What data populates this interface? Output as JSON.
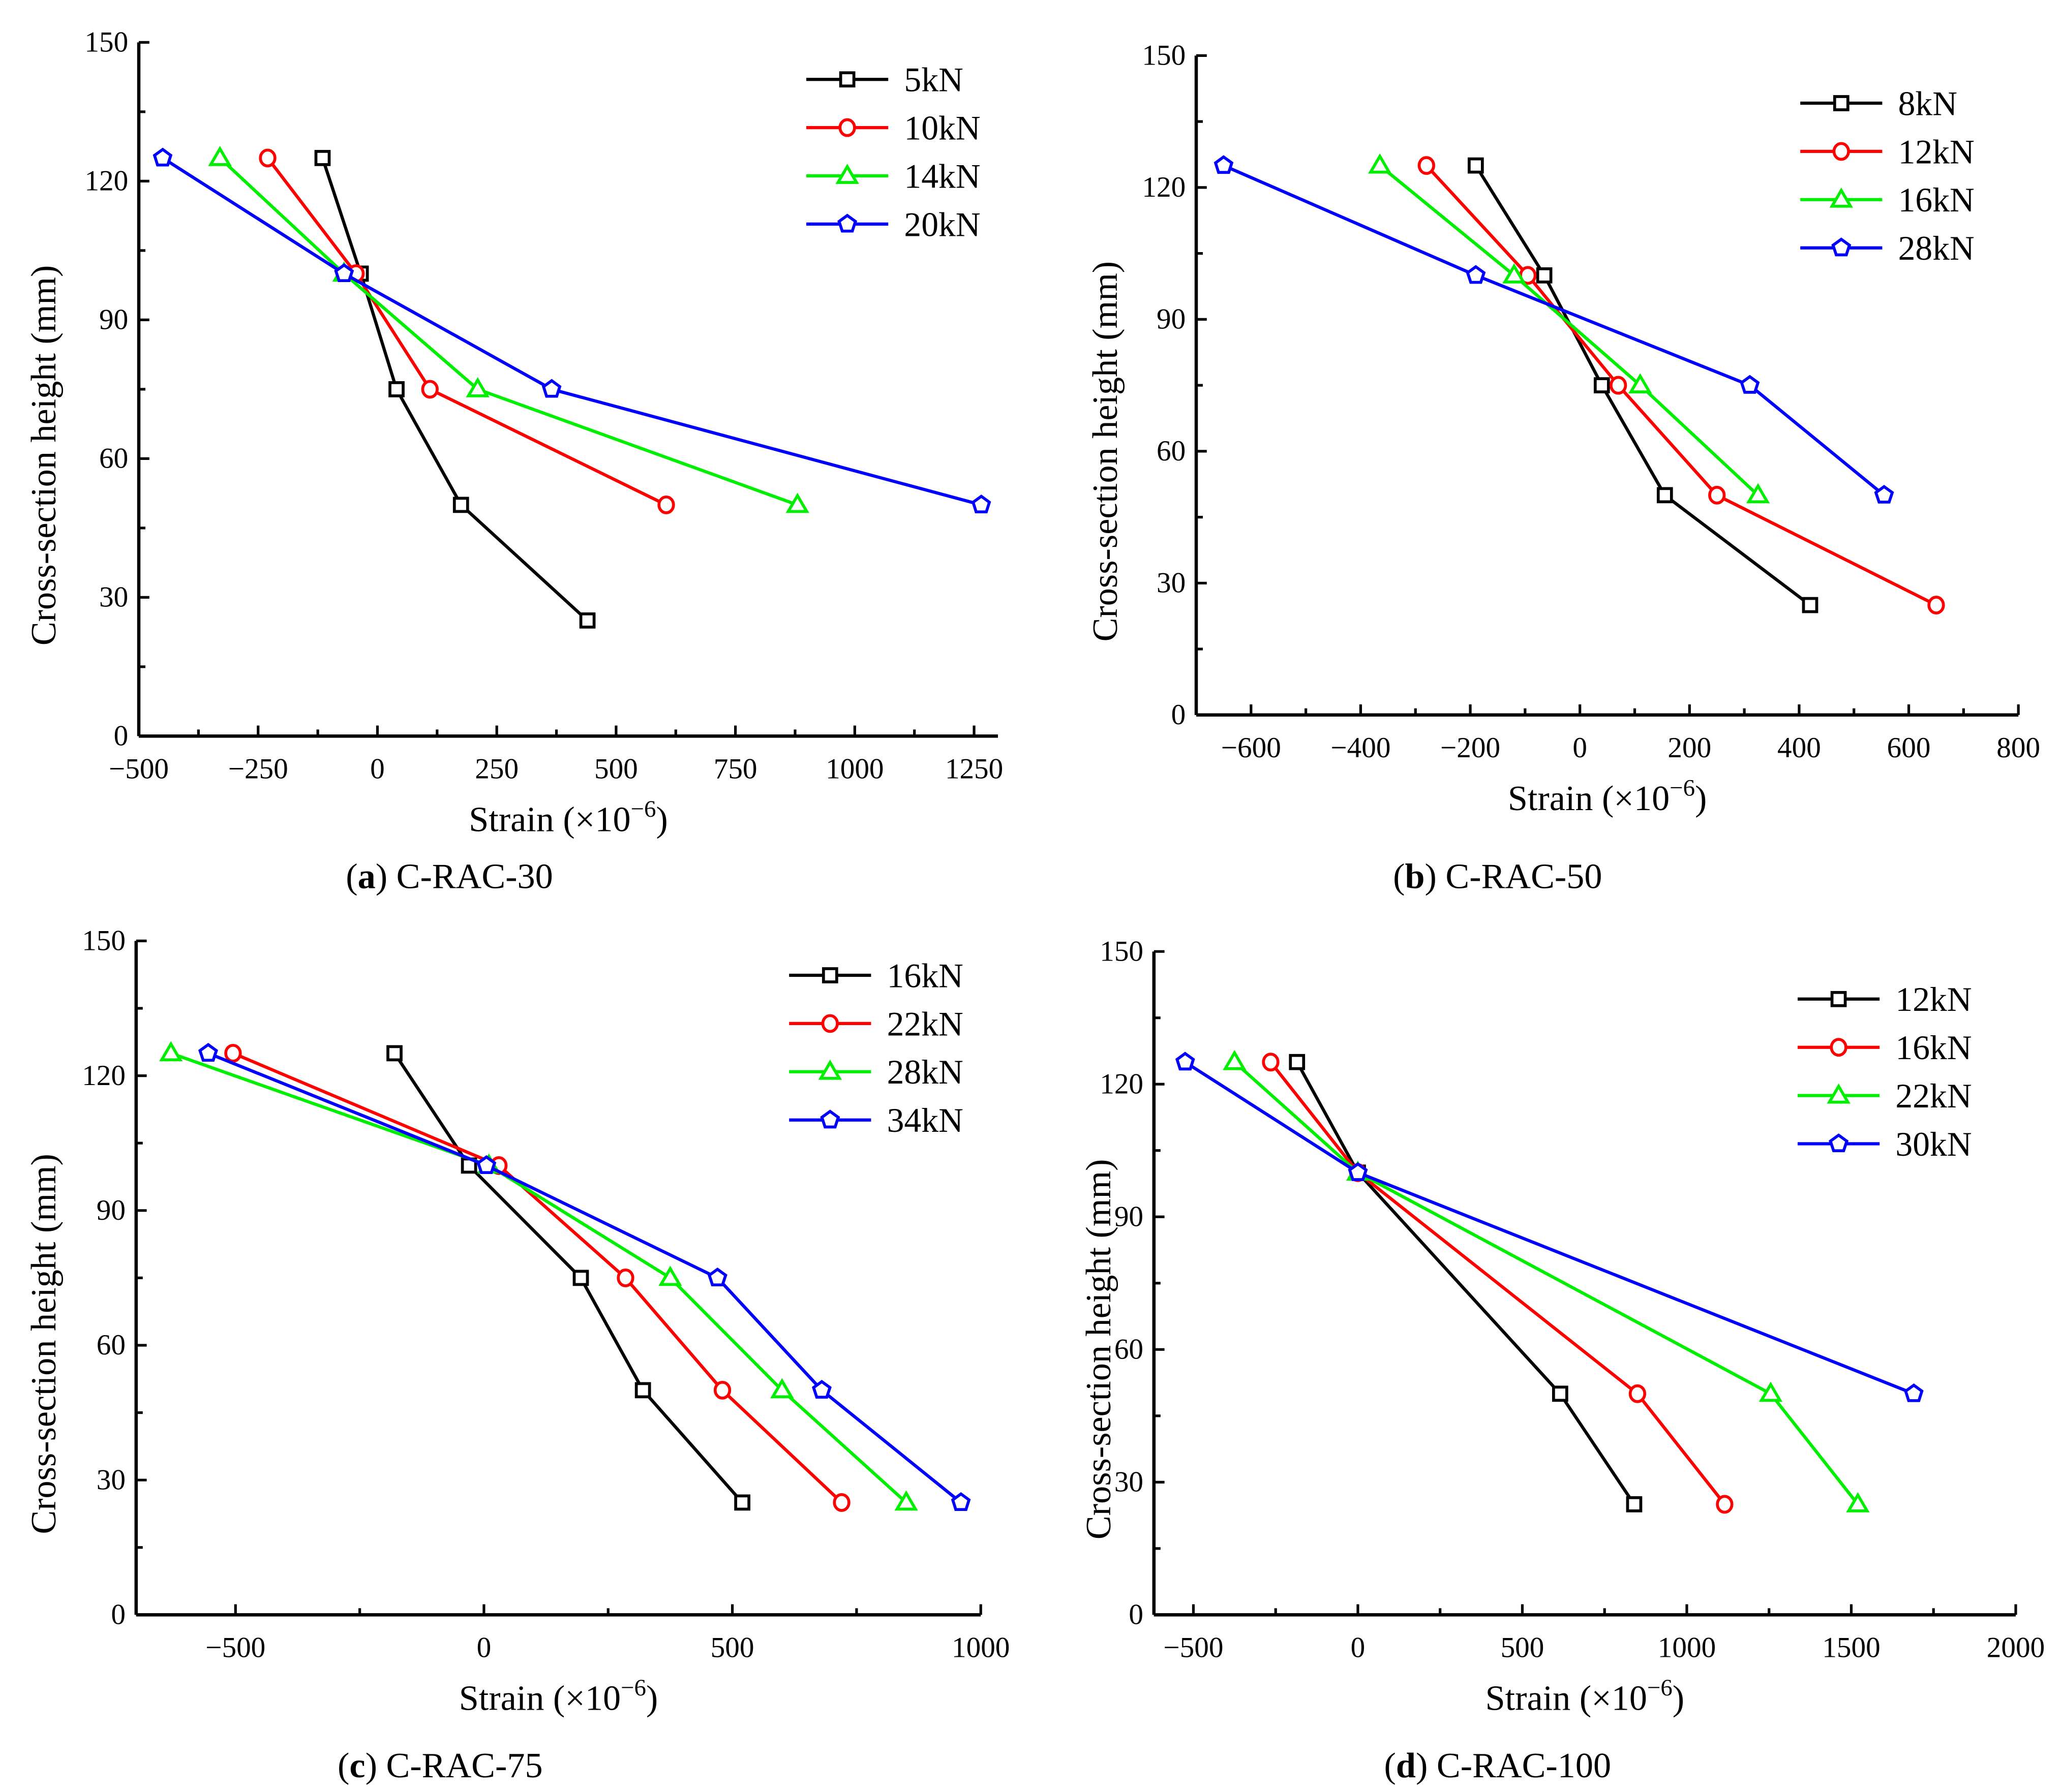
{
  "chart_data": [
    {
      "type": "line",
      "caption_letter": "a",
      "caption_text": "C-RAC-30",
      "xlabel": "Strain (×10",
      "xlabel_exp": "−6",
      "xlabel_end": ")",
      "ylabel": "Cross-section height (mm)",
      "xlim": [
        -500,
        1300
      ],
      "ylim": [
        0,
        150
      ],
      "xticks": [
        -500,
        -250,
        0,
        250,
        500,
        750,
        1000,
        1250
      ],
      "xtick_labels": [
        "−500",
        "−250",
        "0",
        "250",
        "500",
        "750",
        "1000",
        "1250"
      ],
      "yticks": [
        0,
        30,
        60,
        90,
        120,
        150
      ],
      "ytick_labels": [
        "0",
        "30",
        "60",
        "90",
        "120",
        "150"
      ],
      "legend_position": "top-right",
      "series": [
        {
          "name": "5kN",
          "color": "#000000",
          "marker": "square",
          "x": [
            -115,
            -35,
            40,
            175,
            440
          ],
          "y": [
            125,
            100,
            75,
            50,
            25
          ]
        },
        {
          "name": "10kN",
          "color": "#ff0000",
          "marker": "circle",
          "x": [
            -230,
            -45,
            110,
            605
          ],
          "y": [
            125,
            100,
            75,
            50
          ]
        },
        {
          "name": "14kN",
          "color": "#00ee00",
          "marker": "triangle",
          "x": [
            -330,
            -70,
            210,
            880
          ],
          "y": [
            125,
            100,
            75,
            50
          ]
        },
        {
          "name": "20kN",
          "color": "#0000ff",
          "marker": "pentagon",
          "x": [
            -450,
            -70,
            365,
            1265
          ],
          "y": [
            125,
            100,
            75,
            50
          ]
        }
      ]
    },
    {
      "type": "line",
      "caption_letter": "b",
      "caption_text": "C-RAC-50",
      "xlabel": "Strain (×10",
      "xlabel_exp": "−6",
      "xlabel_end": ")",
      "ylabel": "Cross-section height (mm)",
      "xlim": [
        -700,
        800
      ],
      "ylim": [
        0,
        150
      ],
      "xticks": [
        -600,
        -400,
        -200,
        0,
        200,
        400,
        600,
        800
      ],
      "xtick_labels": [
        "−600",
        "−400",
        "−200",
        "0",
        "200",
        "400",
        "600",
        "800"
      ],
      "yticks": [
        0,
        30,
        60,
        90,
        120,
        150
      ],
      "ytick_labels": [
        "0",
        "30",
        "60",
        "90",
        "120",
        "150"
      ],
      "legend_position": "top-right",
      "series": [
        {
          "name": "8kN",
          "color": "#000000",
          "marker": "square",
          "x": [
            -190,
            -65,
            40,
            155,
            420
          ],
          "y": [
            125,
            100,
            75,
            50,
            25
          ]
        },
        {
          "name": "12kN",
          "color": "#ff0000",
          "marker": "circle",
          "x": [
            -280,
            -95,
            70,
            250,
            650
          ],
          "y": [
            125,
            100,
            75,
            50,
            25
          ]
        },
        {
          "name": "16kN",
          "color": "#00ee00",
          "marker": "triangle",
          "x": [
            -365,
            -120,
            110,
            325
          ],
          "y": [
            125,
            100,
            75,
            50
          ]
        },
        {
          "name": "28kN",
          "color": "#0000ff",
          "marker": "pentagon",
          "x": [
            -650,
            -190,
            310,
            555
          ],
          "y": [
            125,
            100,
            75,
            50
          ]
        }
      ]
    },
    {
      "type": "line",
      "caption_letter": "c",
      "caption_text": "C-RAC-75",
      "xlabel": "Strain (×10",
      "xlabel_exp": "−6",
      "xlabel_end": ")",
      "ylabel": "Cross-section height (mm)",
      "xlim": [
        -700,
        1000
      ],
      "ylim": [
        0,
        150
      ],
      "xticks": [
        -500,
        0,
        500,
        1000
      ],
      "xtick_labels": [
        "−500",
        "0",
        "500",
        "1000"
      ],
      "yticks": [
        0,
        30,
        60,
        90,
        120,
        150
      ],
      "ytick_labels": [
        "0",
        "30",
        "60",
        "90",
        "120",
        "150"
      ],
      "legend_position": "top-right",
      "series": [
        {
          "name": "16kN",
          "color": "#000000",
          "marker": "square",
          "x": [
            -180,
            -30,
            195,
            320,
            520
          ],
          "y": [
            125,
            100,
            75,
            50,
            25
          ]
        },
        {
          "name": "22kN",
          "color": "#ff0000",
          "marker": "circle",
          "x": [
            -505,
            30,
            285,
            480,
            720
          ],
          "y": [
            125,
            100,
            75,
            50,
            25
          ]
        },
        {
          "name": "28kN",
          "color": "#00ee00",
          "marker": "triangle",
          "x": [
            -630,
            10,
            375,
            600,
            850
          ],
          "y": [
            125,
            100,
            75,
            50,
            25
          ]
        },
        {
          "name": "34kN",
          "color": "#0000ff",
          "marker": "pentagon",
          "x": [
            -555,
            5,
            470,
            680,
            960
          ],
          "y": [
            125,
            100,
            75,
            50,
            25
          ]
        }
      ]
    },
    {
      "type": "line",
      "caption_letter": "d",
      "caption_text": "C-RAC-100",
      "xlabel": "Strain (×10",
      "xlabel_exp": "−6",
      "xlabel_end": ")",
      "ylabel": "Cross-section height (mm)",
      "xlim": [
        -620,
        2000
      ],
      "ylim": [
        0,
        150
      ],
      "xticks": [
        -500,
        0,
        500,
        1000,
        1500,
        2000
      ],
      "xtick_labels": [
        "−500",
        "0",
        "500",
        "1000",
        "1500",
        "2000"
      ],
      "yticks": [
        0,
        30,
        60,
        90,
        120,
        150
      ],
      "ytick_labels": [
        "0",
        "30",
        "60",
        "90",
        "120",
        "150"
      ],
      "legend_position": "top-right",
      "series": [
        {
          "name": "12kN",
          "color": "#000000",
          "marker": "square",
          "x": [
            -185,
            0,
            615,
            840
          ],
          "y": [
            125,
            100,
            50,
            25
          ]
        },
        {
          "name": "16kN",
          "color": "#ff0000",
          "marker": "circle",
          "x": [
            -265,
            0,
            850,
            1115
          ],
          "y": [
            125,
            100,
            50,
            25
          ]
        },
        {
          "name": "22kN",
          "color": "#00ee00",
          "marker": "triangle",
          "x": [
            -375,
            0,
            1255,
            1520
          ],
          "y": [
            125,
            100,
            50,
            25
          ]
        },
        {
          "name": "30kN",
          "color": "#0000ff",
          "marker": "pentagon",
          "x": [
            -525,
            0,
            1690
          ],
          "y": [
            125,
            100,
            50
          ]
        }
      ]
    }
  ]
}
